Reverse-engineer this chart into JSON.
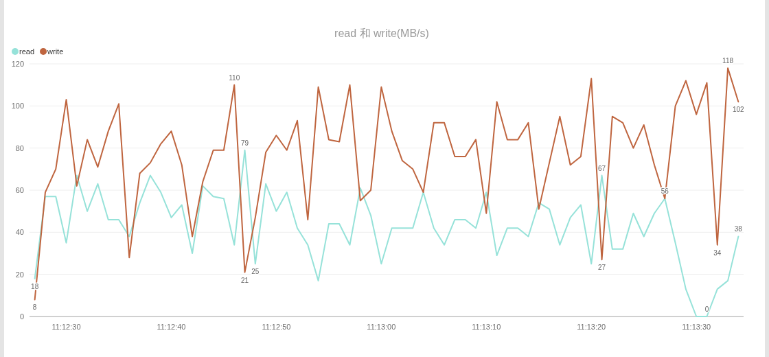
{
  "chart_data": {
    "type": "line",
    "title": "read 和 write(MB/s)",
    "categories": [
      null,
      null,
      null,
      "11:12:30",
      null,
      null,
      null,
      null,
      null,
      null,
      null,
      null,
      null,
      "11:12:40",
      null,
      null,
      null,
      null,
      null,
      null,
      null,
      null,
      null,
      "11:12:50",
      null,
      null,
      null,
      null,
      null,
      null,
      null,
      null,
      null,
      "11:13:00",
      null,
      null,
      null,
      null,
      null,
      null,
      null,
      null,
      null,
      "11:13:10",
      null,
      null,
      null,
      null,
      null,
      null,
      null,
      null,
      null,
      "11:13:20",
      null,
      null,
      null,
      null,
      null,
      null,
      null,
      null,
      null,
      "11:13:30",
      null,
      null,
      null,
      null
    ],
    "series": [
      {
        "name": "read",
        "color": "#96e2d9",
        "values": [
          18,
          57,
          57,
          35,
          67,
          50,
          63,
          46,
          46,
          38,
          54,
          67,
          59,
          47,
          53,
          30,
          62,
          57,
          56,
          34,
          79,
          25,
          63,
          50,
          59,
          42,
          34,
          17,
          44,
          44,
          34,
          61,
          48,
          25,
          42,
          42,
          42,
          59,
          42,
          34,
          46,
          46,
          42,
          59,
          29,
          42,
          42,
          38,
          54,
          51,
          34,
          47,
          53,
          25,
          67,
          32,
          32,
          49,
          38,
          49,
          56,
          35,
          13,
          0,
          0,
          13,
          17,
          38
        ],
        "value_labels": [
          "18",
          null,
          null,
          null,
          null,
          null,
          null,
          null,
          null,
          null,
          null,
          null,
          null,
          null,
          null,
          null,
          null,
          null,
          null,
          null,
          "79",
          "25",
          null,
          null,
          null,
          null,
          null,
          null,
          null,
          null,
          null,
          null,
          null,
          null,
          null,
          null,
          null,
          null,
          null,
          null,
          null,
          null,
          null,
          null,
          null,
          null,
          null,
          null,
          null,
          null,
          null,
          null,
          null,
          null,
          "67",
          null,
          null,
          null,
          null,
          null,
          "56",
          null,
          null,
          null,
          "0",
          null,
          null,
          "38"
        ]
      },
      {
        "name": "write",
        "color": "#bf653f",
        "values": [
          8,
          59,
          70,
          103,
          62,
          84,
          71,
          88,
          101,
          28,
          68,
          73,
          82,
          88,
          72,
          38,
          64,
          79,
          79,
          110,
          21,
          47,
          78,
          86,
          79,
          93,
          46,
          109,
          84,
          83,
          110,
          55,
          60,
          109,
          88,
          74,
          70,
          59,
          92,
          92,
          76,
          76,
          84,
          49,
          102,
          84,
          84,
          92,
          51,
          73,
          95,
          72,
          76,
          113,
          27,
          95,
          92,
          80,
          91,
          72,
          56,
          100,
          112,
          96,
          111,
          34,
          118,
          102
        ],
        "value_labels": [
          "8",
          null,
          null,
          null,
          null,
          null,
          null,
          null,
          null,
          null,
          null,
          null,
          null,
          null,
          null,
          null,
          null,
          null,
          null,
          "110",
          "21",
          null,
          null,
          null,
          null,
          null,
          null,
          null,
          null,
          null,
          null,
          null,
          null,
          null,
          null,
          null,
          null,
          null,
          null,
          null,
          null,
          null,
          null,
          null,
          null,
          null,
          null,
          null,
          null,
          null,
          null,
          null,
          null,
          null,
          "27",
          null,
          null,
          null,
          null,
          null,
          null,
          null,
          null,
          null,
          null,
          "34",
          "118",
          "102"
        ]
      }
    ],
    "ylim": [
      0,
      120
    ],
    "yticks": [
      0,
      20,
      40,
      60,
      80,
      100,
      120
    ],
    "grid": "y",
    "legend": "top left"
  }
}
